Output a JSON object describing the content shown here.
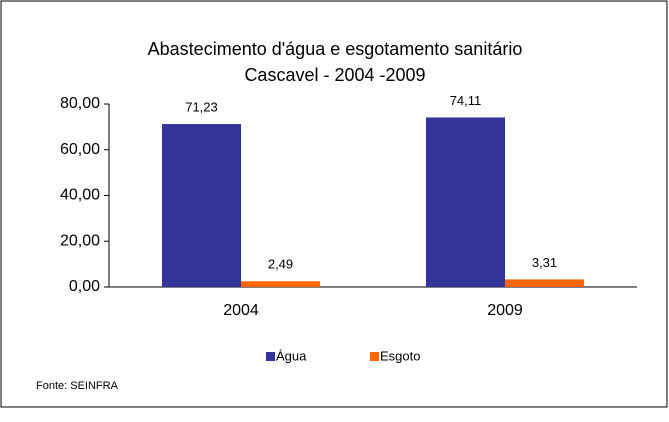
{
  "chart_data": {
    "type": "bar",
    "title": [
      "Abastecimento d'água e esgotamento sanitário",
      "Cascavel - 2004 -2009"
    ],
    "categories": [
      "2004",
      "2009"
    ],
    "series": [
      {
        "name": "Água",
        "color": "#333399",
        "values": [
          71.23,
          74.11
        ],
        "value_labels": [
          "71,23",
          "74,11"
        ]
      },
      {
        "name": "Esgoto",
        "color": "#ff6600",
        "values": [
          2.49,
          3.31
        ],
        "value_labels": [
          "2,49",
          "3,31"
        ]
      }
    ],
    "ylim": [
      0,
      80
    ],
    "yticks": [
      {
        "value": 0,
        "label": "0,00"
      },
      {
        "value": 20,
        "label": "20,00"
      },
      {
        "value": 40,
        "label": "40,00"
      },
      {
        "value": 60,
        "label": "60,00"
      },
      {
        "value": 80,
        "label": "80,00"
      }
    ],
    "grid": false,
    "legend": "bottom",
    "source": "Fonte: SEINFRA"
  }
}
